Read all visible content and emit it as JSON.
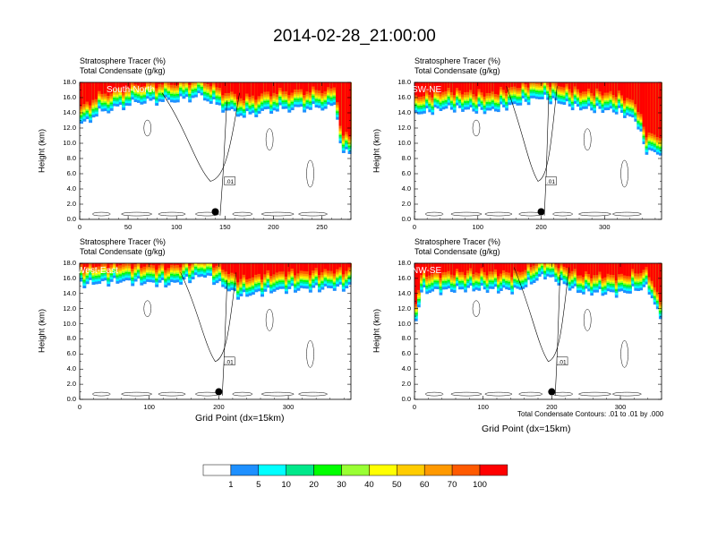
{
  "title": "2014-02-28_21:00:00",
  "panel_subtitle_1": "Stratosphere Tracer   (%)",
  "panel_subtitle_2": "Total Condensate   (g/kg)",
  "ylabel": "Height (km)",
  "xlabel": "Grid Point (dx=15km)",
  "contour_note": "Total Condensate Contours: .01 to .01 by .000",
  "contour_label": ".01",
  "colors": {
    "levels": [
      "#ffffff",
      "#1e90ff",
      "#00ffff",
      "#00e88a",
      "#00ff00",
      "#99ff33",
      "#ffff00",
      "#ffcc00",
      "#ff9900",
      "#ff5a00",
      "#ff0000"
    ],
    "outline": "#000000"
  },
  "chart_data": [
    {
      "type": "heatmap",
      "region": "South-North",
      "xlim": [
        0,
        280
      ],
      "ylim": [
        0,
        18
      ],
      "xticks": [
        "0",
        "50",
        "100",
        "150",
        "200",
        "250"
      ],
      "yticks": [
        "0.0",
        "2.0",
        "4.0",
        "6.0",
        "8.0",
        "10.0",
        "12.0",
        "14.0",
        "16.0",
        "18.0"
      ],
      "tracer_base_km": [
        [
          0,
          12.2
        ],
        [
          20,
          14.0
        ],
        [
          60,
          15.4
        ],
        [
          100,
          15.6
        ],
        [
          125,
          16.2
        ],
        [
          150,
          14.4
        ],
        [
          170,
          13.6
        ],
        [
          200,
          14.4
        ],
        [
          240,
          14.6
        ],
        [
          265,
          14.8
        ],
        [
          270,
          9.0
        ],
        [
          280,
          8.4
        ]
      ],
      "marker": {
        "x": 140,
        "y": 1.0
      }
    },
    {
      "type": "heatmap",
      "region": "SW-NE",
      "xlim": [
        0,
        390
      ],
      "ylim": [
        0,
        18
      ],
      "xticks": [
        "0",
        "100",
        "200",
        "300"
      ],
      "yticks": [
        "0.0",
        "2.0",
        "4.0",
        "6.0",
        "8.0",
        "10.0",
        "12.0",
        "14.0",
        "16.0",
        "18.0"
      ],
      "tracer_base_km": [
        [
          0,
          13.8
        ],
        [
          50,
          14.6
        ],
        [
          120,
          14.2
        ],
        [
          200,
          16.0
        ],
        [
          260,
          14.6
        ],
        [
          320,
          14.2
        ],
        [
          350,
          13.0
        ],
        [
          365,
          9.0
        ],
        [
          390,
          8.6
        ]
      ],
      "marker": {
        "x": 200,
        "y": 1.0
      }
    },
    {
      "type": "heatmap",
      "region": "West-East",
      "xlim": [
        0,
        390
      ],
      "ylim": [
        0,
        18
      ],
      "xticks": [
        "0",
        "100",
        "200",
        "300"
      ],
      "yticks": [
        "0.0",
        "2.0",
        "4.0",
        "6.0",
        "8.0",
        "10.0",
        "12.0",
        "14.0",
        "16.0",
        "18.0"
      ],
      "tracer_base_km": [
        [
          0,
          15.2
        ],
        [
          60,
          15.6
        ],
        [
          130,
          15.2
        ],
        [
          180,
          16.4
        ],
        [
          230,
          13.6
        ],
        [
          280,
          14.4
        ],
        [
          340,
          14.6
        ],
        [
          390,
          14.8
        ]
      ],
      "marker": {
        "x": 200,
        "y": 1.0
      }
    },
    {
      "type": "heatmap",
      "region": "NW-SE",
      "xlim": [
        0,
        360
      ],
      "ylim": [
        0,
        18
      ],
      "xticks": [
        "0",
        "100",
        "200",
        "300"
      ],
      "yticks": [
        "0.0",
        "2.0",
        "4.0",
        "6.0",
        "8.0",
        "10.0",
        "12.0",
        "14.0",
        "16.0",
        "18.0"
      ],
      "tracer_base_km": [
        [
          0,
          9.6
        ],
        [
          10,
          14.2
        ],
        [
          80,
          14.6
        ],
        [
          150,
          14.4
        ],
        [
          190,
          16.4
        ],
        [
          240,
          14.2
        ],
        [
          300,
          14.0
        ],
        [
          340,
          14.8
        ],
        [
          360,
          10.2
        ]
      ],
      "marker": {
        "x": 200,
        "y": 1.0
      }
    }
  ],
  "colorbar": {
    "labels": [
      "1",
      "5",
      "10",
      "20",
      "30",
      "40",
      "50",
      "60",
      "70",
      "100"
    ]
  }
}
